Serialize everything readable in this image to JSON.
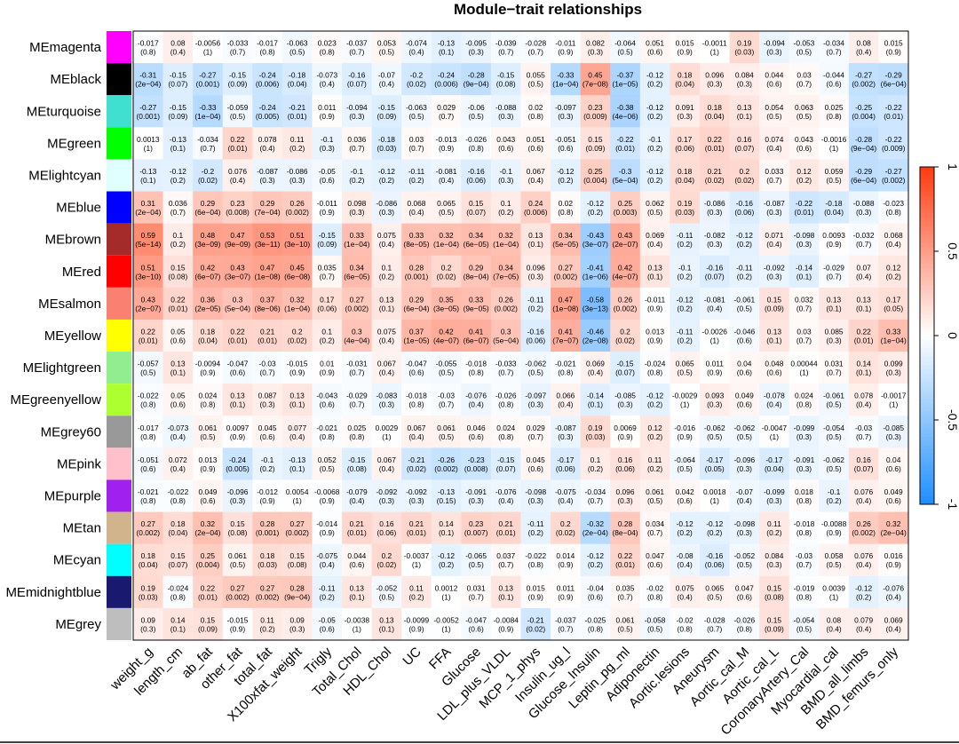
{
  "chart_data": {
    "type": "heatmap",
    "title": "Module−trait relationships",
    "rows": [
      "MEmagenta",
      "MEblack",
      "MEturquoise",
      "MEgreen",
      "MElightcyan",
      "MEblue",
      "MEbrown",
      "MEred",
      "MEsalmon",
      "MEyellow",
      "MElightgreen",
      "MEgreenyellow",
      "MEgrey60",
      "MEpink",
      "MEpurple",
      "MEtan",
      "MEcyan",
      "MEmidnightblue",
      "MEgrey"
    ],
    "row_colors": [
      "#ff00ff",
      "#000000",
      "#40e0d0",
      "#00ff00",
      "#e0ffff",
      "#0000ff",
      "#a52a2a",
      "#ff0000",
      "#fa8072",
      "#ffff00",
      "#90ee90",
      "#adff2f",
      "#999999",
      "#ffc0cb",
      "#a020f0",
      "#d2b48c",
      "#00ffff",
      "#191970",
      "#bebebe"
    ],
    "columns": [
      "weight_g",
      "length_cm",
      "ab_fat",
      "other_fat",
      "total_fat",
      "X100xfat_weight",
      "Trigly",
      "Total_Chol",
      "HDL_Chol",
      "UC",
      "FFA",
      "Glucose",
      "LDL_plus_VLDL",
      "MCP_1_phys",
      "Insulin_ug_l",
      "Glucose_Insulin",
      "Leptin_pg_ml",
      "Adiponectin",
      "Aortic.lesions",
      "Aneurysm",
      "Aortic_cal_M",
      "Aortic_cal_L",
      "CoronaryArtery_Cal",
      "Myocardial_cal",
      "BMD_all_limbs",
      "BMD_femurs_only"
    ],
    "correlations": [
      [
        "-0.017",
        "0.08",
        "-0.0056",
        "-0.033",
        "-0.017",
        "-0.063",
        "0.023",
        "-0.037",
        "0.053",
        "-0.074",
        "-0.13",
        "-0.095",
        "-0.039",
        "-0.028",
        "-0.011",
        "0.082",
        "-0.064",
        "0.051",
        "0.015",
        "-0.0011",
        "0.19",
        "-0.094",
        "-0.053",
        "-0.034",
        "0.08",
        "0.015"
      ],
      [
        "-0.31",
        "-0.15",
        "-0.27",
        "-0.15",
        "-0.24",
        "-0.18",
        "-0.073",
        "-0.16",
        "-0.07",
        "-0.2",
        "-0.24",
        "-0.28",
        "-0.15",
        "0.055",
        "-0.33",
        "0.45",
        "-0.37",
        "-0.12",
        "0.18",
        "0.096",
        "0.084",
        "0.044",
        "0.03",
        "-0.044",
        "-0.27",
        "-0.29"
      ],
      [
        "-0.27",
        "-0.15",
        "-0.33",
        "-0.059",
        "-0.24",
        "-0.21",
        "0.011",
        "-0.094",
        "-0.15",
        "-0.063",
        "0.029",
        "-0.06",
        "-0.088",
        "0.02",
        "-0.097",
        "0.23",
        "-0.38",
        "-0.12",
        "0.091",
        "0.18",
        "0.13",
        "0.054",
        "0.063",
        "0.025",
        "-0.25",
        "-0.22"
      ],
      [
        "0.0013",
        "-0.13",
        "-0.034",
        "0.22",
        "0.078",
        "0.11",
        "-0.1",
        "0.036",
        "-0.18",
        "0.03",
        "-0.013",
        "-0.026",
        "0.043",
        "0.051",
        "-0.051",
        "0.15",
        "-0.22",
        "-0.1",
        "0.17",
        "0.22",
        "0.16",
        "0.074",
        "0.043",
        "-0.0016",
        "-0.28",
        "-0.22"
      ],
      [
        "-0.13",
        "-0.12",
        "-0.2",
        "0.076",
        "-0.087",
        "-0.086",
        "-0.05",
        "-0.1",
        "-0.12",
        "-0.11",
        "-0.081",
        "-0.16",
        "-0.1",
        "0.067",
        "-0.12",
        "0.25",
        "-0.3",
        "-0.12",
        "0.18",
        "0.21",
        "0.2",
        "0.033",
        "0.12",
        "0.059",
        "-0.29",
        "-0.27"
      ],
      [
        "0.31",
        "0.036",
        "0.29",
        "0.23",
        "0.29",
        "0.26",
        "-0.011",
        "0.098",
        "-0.086",
        "0.068",
        "0.065",
        "0.15",
        "0.1",
        "0.24",
        "0.02",
        "-0.12",
        "0.25",
        "0.062",
        "0.19",
        "-0.086",
        "-0.16",
        "-0.087",
        "-0.22",
        "-0.18",
        "-0.088",
        "-0.023"
      ],
      [
        "0.59",
        "0.1",
        "0.48",
        "0.47",
        "0.53",
        "0.51",
        "-0.15",
        "0.33",
        "0.075",
        "0.33",
        "0.32",
        "0.34",
        "0.32",
        "0.13",
        "0.34",
        "-0.43",
        "0.43",
        "0.069",
        "-0.11",
        "-0.082",
        "-0.12",
        "0.071",
        "-0.098",
        "0.0093",
        "-0.032",
        "0.068"
      ],
      [
        "0.51",
        "0.15",
        "0.42",
        "0.43",
        "0.47",
        "0.45",
        "0.035",
        "0.34",
        "0.1",
        "0.28",
        "0.2",
        "0.29",
        "0.34",
        "0.096",
        "0.27",
        "-0.41",
        "0.42",
        "0.13",
        "-0.1",
        "-0.16",
        "-0.11",
        "-0.092",
        "-0.14",
        "-0.029",
        "0.07",
        "0.12"
      ],
      [
        "0.43",
        "0.22",
        "0.36",
        "0.3",
        "0.37",
        "0.32",
        "0.17",
        "0.27",
        "0.13",
        "0.29",
        "0.35",
        "0.33",
        "0.26",
        "-0.11",
        "0.47",
        "-0.58",
        "0.26",
        "-0.011",
        "-0.12",
        "-0.081",
        "-0.061",
        "0.15",
        "0.032",
        "0.13",
        "0.13",
        "0.17"
      ],
      [
        "0.22",
        "0.05",
        "0.18",
        "0.22",
        "0.21",
        "0.2",
        "0.1",
        "0.3",
        "0.075",
        "0.37",
        "0.42",
        "0.41",
        "0.3",
        "-0.16",
        "0.41",
        "-0.46",
        "0.2",
        "0.013",
        "-0.11",
        "-0.0026",
        "-0.046",
        "0.13",
        "0.03",
        "0.085",
        "0.22",
        "0.33"
      ],
      [
        "-0.057",
        "0.13",
        "-0.0094",
        "-0.047",
        "-0.03",
        "-0.015",
        "0.01",
        "-0.031",
        "0.067",
        "-0.047",
        "-0.055",
        "-0.018",
        "-0.033",
        "-0.062",
        "-0.021",
        "0.069",
        "-0.15",
        "-0.024",
        "0.065",
        "0.011",
        "0.04",
        "0.048",
        "0.00044",
        "0.031",
        "0.14",
        "0.099"
      ],
      [
        "-0.022",
        "0.05",
        "0.024",
        "0.13",
        "0.087",
        "0.13",
        "-0.043",
        "-0.029",
        "-0.083",
        "-0.018",
        "-0.03",
        "-0.076",
        "-0.026",
        "-0.097",
        "0.066",
        "-0.14",
        "-0.085",
        "-0.12",
        "-0.0029",
        "0.093",
        "0.049",
        "-0.078",
        "0.024",
        "-0.061",
        "0.078",
        "-0.0017"
      ],
      [
        "-0.017",
        "-0.073",
        "0.061",
        "0.0097",
        "0.045",
        "0.077",
        "-0.021",
        "0.025",
        "0.0029",
        "0.067",
        "0.061",
        "0.046",
        "0.024",
        "0.029",
        "-0.087",
        "0.19",
        "0.0069",
        "0.12",
        "-0.016",
        "-0.062",
        "-0.062",
        "-0.0047",
        "-0.099",
        "-0.054",
        "-0.03",
        "-0.085"
      ],
      [
        "-0.051",
        "0.072",
        "0.013",
        "-0.24",
        "-0.1",
        "-0.13",
        "0.052",
        "-0.15",
        "0.067",
        "-0.21",
        "-0.26",
        "-0.23",
        "-0.15",
        "0.045",
        "-0.17",
        "0.1",
        "0.16",
        "0.11",
        "-0.064",
        "-0.17",
        "-0.096",
        "-0.17",
        "-0.091",
        "-0.062",
        "0.16",
        "0.04"
      ],
      [
        "-0.021",
        "-0.022",
        "0.049",
        "-0.096",
        "-0.012",
        "0.0054",
        "-0.0068",
        "-0.079",
        "-0.092",
        "-0.092",
        "-0.13",
        "-0.091",
        "-0.076",
        "-0.098",
        "-0.075",
        "-0.034",
        "0.096",
        "0.061",
        "0.042",
        "0.0018",
        "-0.07",
        "-0.099",
        "0.018",
        "-0.1",
        "0.076",
        "0.049"
      ],
      [
        "0.27",
        "0.18",
        "0.32",
        "0.15",
        "0.28",
        "0.27",
        "-0.014",
        "0.21",
        "0.16",
        "0.21",
        "0.14",
        "0.23",
        "0.21",
        "-0.11",
        "0.2",
        "-0.32",
        "0.28",
        "0.034",
        "-0.12",
        "-0.12",
        "-0.098",
        "0.11",
        "-0.018",
        "-0.0088",
        "0.26",
        "0.32"
      ],
      [
        "0.18",
        "0.15",
        "0.25",
        "0.061",
        "0.18",
        "0.15",
        "-0.075",
        "0.044",
        "0.2",
        "-0.0037",
        "-0.12",
        "-0.065",
        "0.037",
        "-0.022",
        "0.014",
        "-0.12",
        "0.22",
        "0.047",
        "-0.08",
        "-0.16",
        "-0.052",
        "0.084",
        "-0.03",
        "0.058",
        "0.076",
        "0.016"
      ],
      [
        "0.19",
        "-0.024",
        "0.22",
        "0.27",
        "0.27",
        "0.28",
        "-0.11",
        "0.13",
        "-0.052",
        "0.11",
        "0.0012",
        "0.031",
        "0.13",
        "0.015",
        "0.011",
        "-0.04",
        "0.035",
        "-0.02",
        "0.075",
        "0.065",
        "0.047",
        "0.15",
        "-0.019",
        "0.0039",
        "-0.12",
        "-0.076"
      ],
      [
        "0.09",
        "0.14",
        "0.15",
        "-0.015",
        "0.11",
        "0.09",
        "-0.05",
        "-0.0038",
        "0.13",
        "-0.0099",
        "-0.0052",
        "-0.047",
        "-0.0084",
        "-0.21",
        "-0.037",
        "-0.025",
        "0.061",
        "-0.058",
        "-0.02",
        "-0.028",
        "-0.026",
        "0.15",
        "-0.054",
        "0.08",
        "0.079",
        "0.069"
      ]
    ],
    "pvalues": [
      [
        "(0.8)",
        "(0.4)",
        "(1)",
        "(0.7)",
        "(0.8)",
        "(0.5)",
        "(0.8)",
        "(0.7)",
        "(0.5)",
        "(0.4)",
        "(0.1)",
        "(0.3)",
        "(0.7)",
        "(0.7)",
        "(0.9)",
        "(0.3)",
        "(0.5)",
        "(0.6)",
        "(0.9)",
        "(1)",
        "(0.03)",
        "(0.3)",
        "(0.5)",
        "(0.7)",
        "(0.4)",
        "(0.9)"
      ],
      [
        "(2e−04)",
        "(0.07)",
        "(0.001)",
        "(0.09)",
        "(0.006)",
        "(0.04)",
        "(0.4)",
        "(0.07)",
        "(0.4)",
        "(0.02)",
        "(0.006)",
        "(9e−04)",
        "(0.08)",
        "(0.5)",
        "(1e−04)",
        "(7e−08)",
        "(1e−05)",
        "(0.2)",
        "(0.04)",
        "(0.3)",
        "(0.3)",
        "(0.6)",
        "(0.7)",
        "(0.6)",
        "(0.002)",
        "(6e−04)"
      ],
      [
        "(0.001)",
        "(0.09)",
        "(1e−04)",
        "(0.5)",
        "(0.005)",
        "(0.01)",
        "(0.9)",
        "(0.3)",
        "(0.09)",
        "(0.5)",
        "(0.7)",
        "(0.5)",
        "(0.3)",
        "(0.8)",
        "(0.3)",
        "(0.009)",
        "(4e−06)",
        "(0.2)",
        "(0.3)",
        "(0.04)",
        "(0.1)",
        "(0.5)",
        "(0.5)",
        "(0.8)",
        "(0.004)",
        "(0.01)"
      ],
      [
        "(1)",
        "(0.1)",
        "(0.7)",
        "(0.01)",
        "(0.4)",
        "(0.2)",
        "(0.3)",
        "(0.7)",
        "(0.03)",
        "(0.7)",
        "(0.9)",
        "(0.8)",
        "(0.6)",
        "(0.6)",
        "(0.6)",
        "(0.09)",
        "(0.01)",
        "(0.2)",
        "(0.06)",
        "(0.01)",
        "(0.07)",
        "(0.4)",
        "(0.6)",
        "(1)",
        "(9e−04)",
        "(0.009)"
      ],
      [
        "(0.1)",
        "(0.2)",
        "(0.02)",
        "(0.4)",
        "(0.3)",
        "(0.3)",
        "(0.6)",
        "(0.2)",
        "(0.2)",
        "(0.2)",
        "(0.4)",
        "(0.06)",
        "(0.3)",
        "(0.4)",
        "(0.2)",
        "(0.004)",
        "(5e−04)",
        "(0.2)",
        "(0.04)",
        "(0.02)",
        "(0.02)",
        "(0.7)",
        "(0.2)",
        "(0.5)",
        "(6e−04)",
        "(0.002)"
      ],
      [
        "(2e−04)",
        "(0.7)",
        "(6e−04)",
        "(0.008)",
        "(7e−04)",
        "(0.002)",
        "(0.9)",
        "(0.3)",
        "(0.3)",
        "(0.4)",
        "(0.5)",
        "(0.07)",
        "(0.2)",
        "(0.006)",
        "(0.8)",
        "(0.2)",
        "(0.003)",
        "(0.5)",
        "(0.03)",
        "(0.3)",
        "(0.06)",
        "(0.3)",
        "(0.01)",
        "(0.04)",
        "(0.3)",
        "(0.8)"
      ],
      [
        "(5e−14)",
        "(0.2)",
        "(3e−09)",
        "(9e−09)",
        "(3e−11)",
        "(3e−10)",
        "(0.09)",
        "(1e−04)",
        "(0.4)",
        "(8e−05)",
        "(1e−04)",
        "(6e−05)",
        "(1e−04)",
        "(0.1)",
        "(5e−05)",
        "(3e−07)",
        "(2e−07)",
        "(0.4)",
        "(0.2)",
        "(0.3)",
        "(0.2)",
        "(0.4)",
        "(0.3)",
        "(0.9)",
        "(0.7)",
        "(0.4)"
      ],
      [
        "(3e−10)",
        "(0.08)",
        "(6e−07)",
        "(3e−07)",
        "(1e−08)",
        "(6e−08)",
        "(0.7)",
        "(6e−05)",
        "(0.2)",
        "(0.001)",
        "(0.02)",
        "(8e−04)",
        "(7e−05)",
        "(0.3)",
        "(0.002)",
        "(1e−06)",
        "(4e−07)",
        "(0.1)",
        "(0.2)",
        "(0.07)",
        "(0.2)",
        "(0.3)",
        "(0.1)",
        "(0.7)",
        "(0.4)",
        "(0.2)"
      ],
      [
        "(2e−07)",
        "(0.01)",
        "(2e−05)",
        "(5e−04)",
        "(8e−06)",
        "(1e−04)",
        "(0.06)",
        "(0.002)",
        "(0.1)",
        "(6e−04)",
        "(3e−05)",
        "(9e−05)",
        "(0.002)",
        "(0.2)",
        "(1e−08)",
        "(3e−13)",
        "(0.002)",
        "(0.9)",
        "(0.2)",
        "(0.4)",
        "(0.5)",
        "(0.09)",
        "(0.7)",
        "(0.1)",
        "(0.1)",
        "(0.05)"
      ],
      [
        "(0.01)",
        "(0.6)",
        "(0.04)",
        "(0.01)",
        "(0.01)",
        "(0.02)",
        "(0.2)",
        "(4e−04)",
        "(0.4)",
        "(1e−05)",
        "(4e−07)",
        "(6e−07)",
        "(5e−04)",
        "(0.06)",
        "(7e−07)",
        "(2e−08)",
        "(0.02)",
        "(0.9)",
        "(0.2)",
        "(1)",
        "(0.6)",
        "(0.1)",
        "(0.7)",
        "(0.3)",
        "(0.01)",
        "(1e−04)"
      ],
      [
        "(0.5)",
        "(0.1)",
        "(0.9)",
        "(0.6)",
        "(0.7)",
        "(0.9)",
        "(0.9)",
        "(0.7)",
        "(0.4)",
        "(0.6)",
        "(0.5)",
        "(0.8)",
        "(0.7)",
        "(0.5)",
        "(0.8)",
        "(0.4)",
        "(0.07)",
        "(0.8)",
        "(0.5)",
        "(0.9)",
        "(0.6)",
        "(0.6)",
        "(1)",
        "(0.7)",
        "(0.1)",
        "(0.3)"
      ],
      [
        "(0.8)",
        "(0.6)",
        "(0.8)",
        "(0.1)",
        "(0.3)",
        "(0.1)",
        "(0.6)",
        "(0.7)",
        "(0.3)",
        "(0.8)",
        "(0.7)",
        "(0.4)",
        "(0.8)",
        "(0.3)",
        "(0.4)",
        "(0.1)",
        "(0.3)",
        "(0.2)",
        "(1)",
        "(0.3)",
        "(0.6)",
        "(0.4)",
        "(0.8)",
        "(0.5)",
        "(0.4)",
        "(1)"
      ],
      [
        "(0.8)",
        "(0.4)",
        "(0.5)",
        "(0.9)",
        "(0.6)",
        "(0.4)",
        "(0.8)",
        "(0.8)",
        "(1)",
        "(0.4)",
        "(0.5)",
        "(0.6)",
        "(0.8)",
        "(0.7)",
        "(0.3)",
        "(0.03)",
        "(0.9)",
        "(0.2)",
        "(0.9)",
        "(0.5)",
        "(0.5)",
        "(1)",
        "(0.3)",
        "(0.5)",
        "(0.7)",
        "(0.3)"
      ],
      [
        "(0.6)",
        "(0.4)",
        "(0.9)",
        "(0.005)",
        "(0.2)",
        "(0.1)",
        "(0.5)",
        "(0.08)",
        "(0.4)",
        "(0.02)",
        "(0.002)",
        "(0.008)",
        "(0.07)",
        "(0.6)",
        "(0.06)",
        "(0.2)",
        "(0.06)",
        "(0.2)",
        "(0.5)",
        "(0.05)",
        "(0.3)",
        "(0.04)",
        "(0.3)",
        "(0.5)",
        "(0.07)",
        "(0.6)"
      ],
      [
        "(0.8)",
        "(0.8)",
        "(0.6)",
        "(0.3)",
        "(0.9)",
        "(1)",
        "(0.9)",
        "(0.4)",
        "(0.3)",
        "(0.3)",
        "(0.15)",
        "(0.3)",
        "(0.4)",
        "(0.3)",
        "(0.4)",
        "(0.7)",
        "(0.3)",
        "(0.5)",
        "(0.6)",
        "(1)",
        "(0.4)",
        "(0.3)",
        "(0.8)",
        "(0.2)",
        "(0.4)",
        "(0.6)"
      ],
      [
        "(0.002)",
        "(0.04)",
        "(2e−04)",
        "(0.08)",
        "(0.001)",
        "(0.002)",
        "(0.9)",
        "(0.01)",
        "(0.06)",
        "(0.01)",
        "(0.1)",
        "(0.007)",
        "(0.01)",
        "(0.2)",
        "(0.02)",
        "(2e−04)",
        "(8e−04)",
        "(0.7)",
        "(0.2)",
        "(0.2)",
        "(0.3)",
        "(0.2)",
        "(0.8)",
        "(0.9)",
        "(0.002)",
        "(2e−04)"
      ],
      [
        "(0.04)",
        "(0.07)",
        "(0.004)",
        "(0.5)",
        "(0.03)",
        "(0.08)",
        "(0.4)",
        "(0.6)",
        "(0.02)",
        "(1)",
        "(0.2)",
        "(0.5)",
        "(0.7)",
        "(0.8)",
        "(0.9)",
        "(0.2)",
        "(0.01)",
        "(0.6)",
        "(0.4)",
        "(0.06)",
        "(0.5)",
        "(0.3)",
        "(0.7)",
        "(0.5)",
        "(0.4)",
        "(0.9)"
      ],
      [
        "(0.03)",
        "(0.8)",
        "(0.01)",
        "(0.002)",
        "(0.002)",
        "(9e−04)",
        "(0.2)",
        "(0.1)",
        "(0.5)",
        "(0.2)",
        "(1)",
        "(0.7)",
        "(0.1)",
        "(0.9)",
        "(0.9)",
        "(0.6)",
        "(0.7)",
        "(0.8)",
        "(0.4)",
        "(0.5)",
        "(0.6)",
        "(0.08)",
        "(0.8)",
        "(1)",
        "(0.2)",
        "(0.4)"
      ],
      [
        "(0.3)",
        "(0.1)",
        "(0.09)",
        "(0.9)",
        "(0.2)",
        "(0.3)",
        "(0.6)",
        "(1)",
        "(0.1)",
        "(0.9)",
        "(1)",
        "(0.6)",
        "(0.9)",
        "(0.02)",
        "(0.7)",
        "(0.8)",
        "(0.5)",
        "(0.5)",
        "(0.8)",
        "(0.7)",
        "(0.8)",
        "(0.09)",
        "(0.5)",
        "(0.4)",
        "(0.4)",
        "(0.4)"
      ]
    ],
    "color_scale": {
      "range": [
        -1,
        1
      ],
      "ticks": [
        "-1",
        "-0.5",
        "0",
        "0.5",
        "1"
      ],
      "low_color": "#1e8eff",
      "mid_color": "#ffffff",
      "high_color": "#ff3a0f"
    },
    "legend": "right"
  }
}
